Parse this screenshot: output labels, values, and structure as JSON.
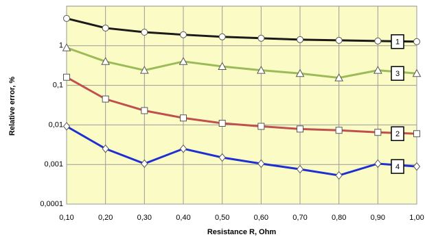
{
  "chart_data": {
    "type": "line",
    "y_label": "Relative error, %",
    "x_label": "Resistance R, Ohm",
    "x": [
      0.1,
      0.2,
      0.3,
      0.4,
      0.5,
      0.6,
      0.7,
      0.8,
      0.9,
      1.0
    ],
    "xlim": [
      0.1,
      1.0
    ],
    "xticks": [
      {
        "value": 0.1,
        "label": "0,10"
      },
      {
        "value": 0.2,
        "label": "0,20"
      },
      {
        "value": 0.3,
        "label": "0,30"
      },
      {
        "value": 0.4,
        "label": "0,40"
      },
      {
        "value": 0.5,
        "label": "0,50"
      },
      {
        "value": 0.6,
        "label": "0,60"
      },
      {
        "value": 0.7,
        "label": "0,70"
      },
      {
        "value": 0.8,
        "label": "0,80"
      },
      {
        "value": 0.9,
        "label": "0,90"
      },
      {
        "value": 1.0,
        "label": "1,00"
      }
    ],
    "ylim": [
      0.0001,
      10
    ],
    "log_y": true,
    "yticks": [
      {
        "value": 0.0001,
        "label": "0,0001"
      },
      {
        "value": 0.001,
        "label": "0,001"
      },
      {
        "value": 0.01,
        "label": "0,01"
      },
      {
        "value": 0.1,
        "label": "0,1"
      },
      1
    ],
    "grid": true,
    "series": [
      {
        "name": "1",
        "color": "#1a1a1a",
        "marker": "circle",
        "values": [
          4.9,
          2.8,
          2.2,
          1.9,
          1.68,
          1.55,
          1.43,
          1.37,
          1.32,
          1.27
        ]
      },
      {
        "name": "3",
        "color": "#9bbb59",
        "marker": "triangle",
        "values": [
          0.89,
          0.4,
          0.24,
          0.4,
          0.3,
          0.24,
          0.2,
          0.155,
          0.24,
          0.2
        ]
      },
      {
        "name": "2",
        "color": "#c0504d",
        "marker": "square",
        "values": [
          0.16,
          0.045,
          0.023,
          0.015,
          0.011,
          0.0092,
          0.0079,
          0.0073,
          0.0065,
          0.006
        ]
      },
      {
        "name": "4",
        "color": "#1f2fd0",
        "marker": "diamond",
        "values": [
          0.0092,
          0.0025,
          0.00105,
          0.0025,
          0.0015,
          0.00105,
          0.00076,
          0.00053,
          0.00105,
          0.00089
        ]
      }
    ]
  }
}
